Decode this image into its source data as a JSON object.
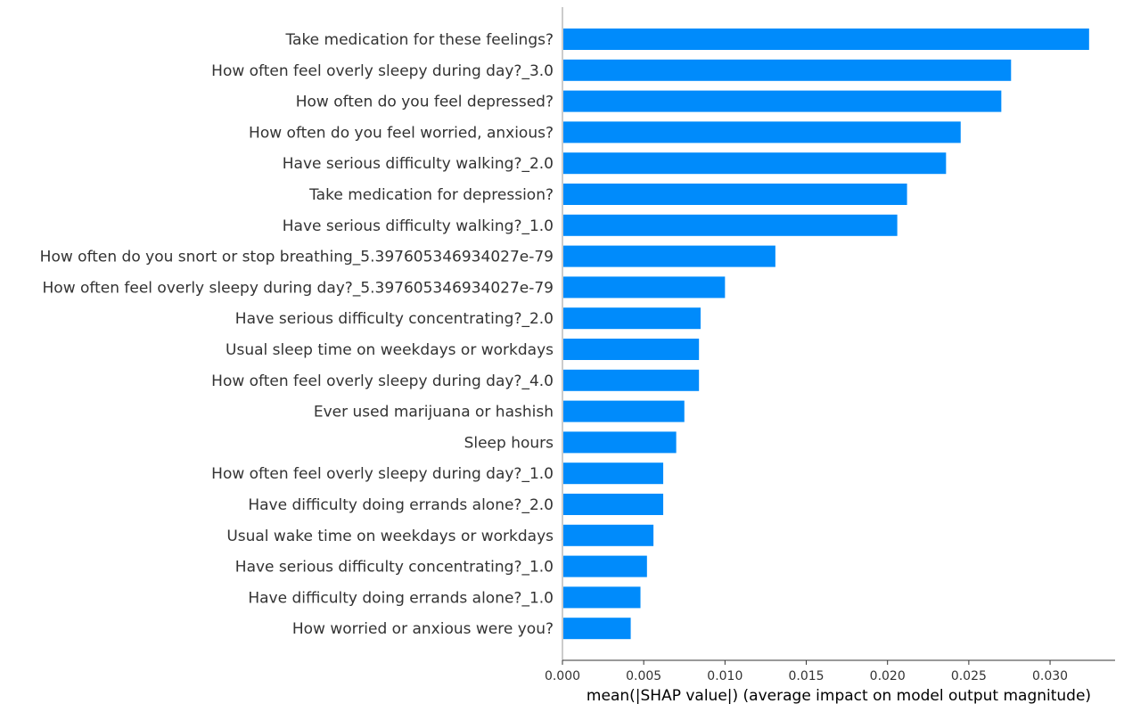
{
  "chart_data": {
    "type": "bar",
    "orientation": "horizontal",
    "categories": [
      "Take medication for these feelings?",
      "How often feel overly sleepy during day?_3.0",
      "How often do you feel depressed?",
      "How often do you feel worried, anxious?",
      "Have serious difficulty walking?_2.0",
      "Take medication for depression?",
      "Have serious difficulty walking?_1.0",
      "How often do you snort or stop breathing_5.397605346934027e-79",
      "How often feel overly sleepy during day?_5.397605346934027e-79",
      "Have serious difficulty concentrating?_2.0",
      "Usual sleep time on weekdays or workdays",
      "How often feel overly sleepy during day?_4.0",
      "Ever used marijuana or hashish",
      "Sleep hours",
      "How often feel overly sleepy during day?_1.0",
      "Have difficulty doing errands alone?_2.0",
      "Usual wake time on weekdays or workdays",
      "Have serious difficulty concentrating?_1.0",
      "Have difficulty doing errands alone?_1.0",
      "How worried or anxious were you?"
    ],
    "values": [
      0.0324,
      0.0276,
      0.027,
      0.0245,
      0.0236,
      0.0212,
      0.0206,
      0.0131,
      0.01,
      0.0085,
      0.0084,
      0.0084,
      0.0075,
      0.007,
      0.0062,
      0.0062,
      0.0056,
      0.0052,
      0.0048,
      0.0042
    ],
    "xlim": [
      0,
      0.034
    ],
    "xticks": [
      0.0,
      0.005,
      0.01,
      0.015,
      0.02,
      0.025,
      0.03
    ],
    "xtick_labels": [
      "0.000",
      "0.005",
      "0.010",
      "0.015",
      "0.020",
      "0.025",
      "0.030"
    ],
    "xlabel": "mean(|SHAP value|) (average impact on model output magnitude)",
    "ylabel": "",
    "title": "",
    "bar_color": "#008bfb",
    "grid": false
  }
}
